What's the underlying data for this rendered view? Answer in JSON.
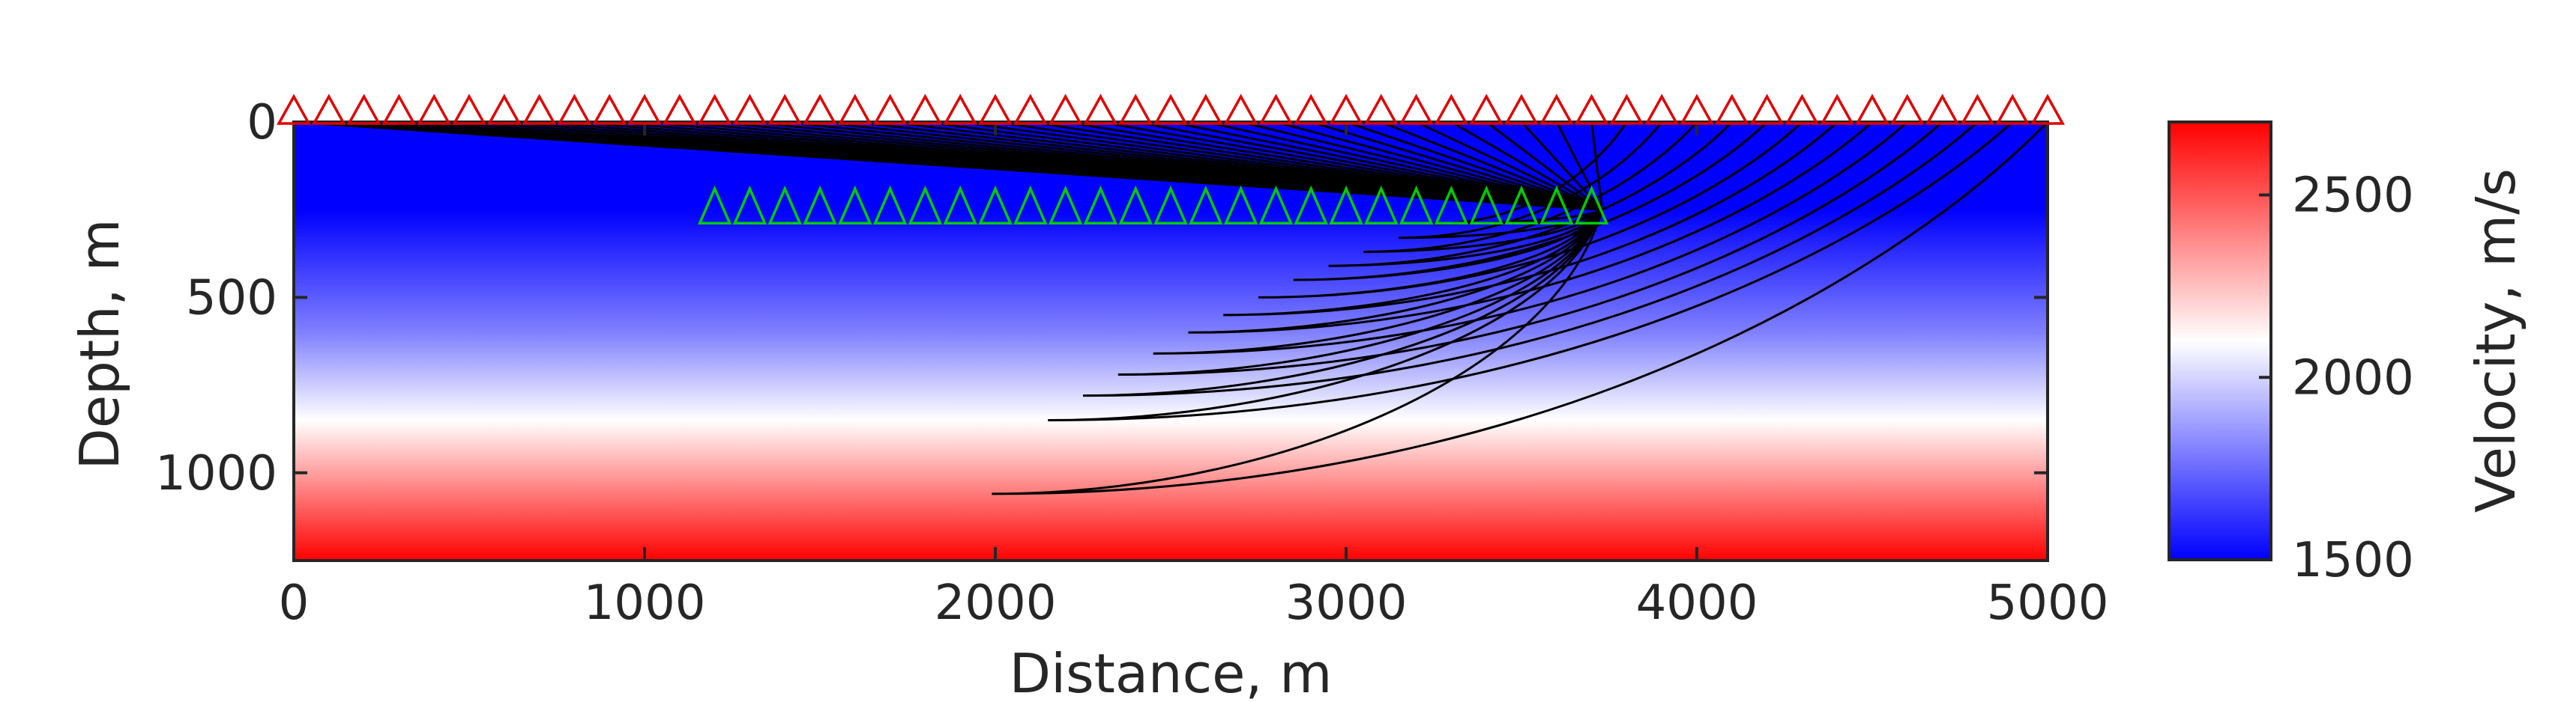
{
  "chart_data": {
    "type": "heatmap",
    "title": "",
    "xlabel": "Distance, m",
    "ylabel": "Depth, m",
    "xlim": [
      0,
      5000
    ],
    "ylim": [
      1250,
      0
    ],
    "xticks": [
      0,
      1000,
      2000,
      3000,
      4000,
      5000
    ],
    "xtick_labels": [
      "0",
      "1000",
      "2000",
      "3000",
      "4000",
      "5000"
    ],
    "yticks": [
      0,
      500,
      1000
    ],
    "ytick_labels": [
      "0",
      "500",
      "1000"
    ],
    "grid": false,
    "velocity_profile": {
      "depth": [
        0,
        250,
        600,
        850,
        1250
      ],
      "velocity": [
        1500,
        1500,
        1800,
        2100,
        2700
      ]
    },
    "colorbar": {
      "label": "Velocity, m/s",
      "range": [
        1500,
        2700
      ],
      "ticks": [
        1500,
        2000,
        2500
      ],
      "tick_labels": [
        "1500",
        "2000",
        "2500"
      ],
      "colormap": [
        "#0000ff",
        "#ffffff",
        "#ff0000"
      ]
    },
    "receivers": {
      "color": "#e00000",
      "depth": 0,
      "x_start": 0,
      "x_step": 100,
      "count": 51
    },
    "sources": {
      "color": "#00cc00",
      "depth": 250,
      "x_start": 1200,
      "x_step": 100,
      "count": 26
    },
    "rays": {
      "color": "#000000",
      "origin": [
        3730,
        250
      ],
      "max_depth": [
        250,
        250,
        250,
        250,
        250,
        250,
        250,
        250,
        250,
        250,
        250,
        250,
        250,
        250,
        250,
        250,
        250,
        250,
        250,
        250,
        250,
        250,
        250,
        250,
        250,
        250,
        250,
        250,
        250,
        250,
        250,
        250,
        250,
        250,
        250,
        250,
        250,
        250,
        290,
        330,
        370,
        410,
        450,
        500,
        550,
        600,
        660,
        720,
        780,
        850,
        1060
      ],
      "turn_x": [
        3730,
        3730,
        3730,
        3730,
        3730,
        3730,
        3730,
        3730,
        3730,
        3730,
        3730,
        3730,
        3730,
        3730,
        3730,
        3730,
        3730,
        3730,
        3730,
        3730,
        3730,
        3730,
        3730,
        3730,
        3730,
        3730,
        3730,
        3730,
        3730,
        3730,
        3730,
        3730,
        3730,
        3730,
        3730,
        3730,
        3730,
        3730,
        3250,
        3150,
        3050,
        2950,
        2850,
        2750,
        2650,
        2550,
        2450,
        2350,
        2250,
        2150,
        1990
      ]
    }
  }
}
